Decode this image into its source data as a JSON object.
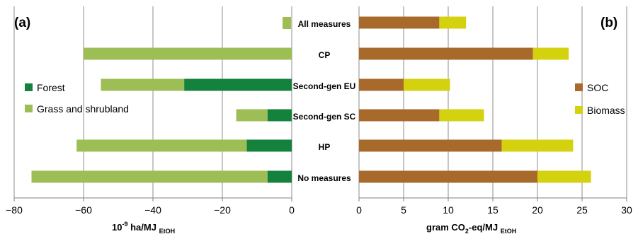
{
  "chart_data": [
    {
      "type": "bar",
      "orientation": "horizontal",
      "stacked": true,
      "panel_label": "(a)",
      "categories": [
        "All measures",
        "CP",
        "Second-gen EU",
        "Second-gen SC",
        "HP",
        "No measures"
      ],
      "series": [
        {
          "name": "Forest",
          "color": "#14813c",
          "values": [
            0,
            0,
            -31,
            -7,
            -13,
            -7
          ]
        },
        {
          "name": "Grass and shrubland",
          "color": "#9dbe54",
          "values": [
            0,
            -60,
            -24,
            -9,
            -49,
            -68
          ]
        }
      ],
      "xlim": [
        -80,
        0
      ],
      "xticks": [
        "−80",
        "−60",
        "−40",
        "−20",
        "0"
      ],
      "xlabel": {
        "main": "10",
        "sup": "-9",
        "rest": " ha/MJ ",
        "sub": "EtOH"
      },
      "grid": "vertical",
      "legend_position": "left"
    },
    {
      "type": "bar",
      "orientation": "horizontal",
      "stacked": true,
      "panel_label": "(b)",
      "categories": [
        "All measures",
        "CP",
        "Second-gen EU",
        "Second-gen SC",
        "HP",
        "No measures"
      ],
      "series": [
        {
          "name": "SOC",
          "color": "#a86a2b",
          "values": [
            9,
            19.5,
            5,
            9,
            16,
            20
          ]
        },
        {
          "name": "Biomass",
          "color": "#d4d10e",
          "values": [
            3,
            4,
            5.2,
            5,
            8,
            6
          ]
        }
      ],
      "xlim": [
        0,
        30
      ],
      "xticks": [
        "0",
        "5",
        "10",
        "15",
        "20",
        "25",
        "30"
      ],
      "xlabel": {
        "main": "gram CO",
        "sub1": "2",
        "rest": "-eq/MJ ",
        "sub": "EtOH"
      },
      "grid": "vertical",
      "legend_position": "right"
    }
  ],
  "center_marker": {
    "color": "#9dbe54"
  }
}
